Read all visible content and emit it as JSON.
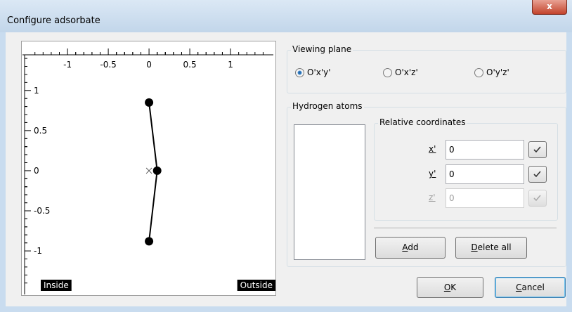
{
  "window": {
    "title": "Configure adsorbate"
  },
  "plot": {
    "xlim": [
      -1.57,
      1.56
    ],
    "ylim": [
      -1.56,
      1.62
    ],
    "xticks": [
      -1,
      -0.5,
      0,
      0.5,
      1
    ],
    "yticks": [
      1,
      0.5,
      0,
      -0.5,
      -1
    ],
    "atoms": {
      "x": [
        0,
        0.1,
        0
      ],
      "y": [
        0.85,
        0,
        -0.88
      ]
    },
    "inside_label": "Inside",
    "outside_label": "Outside"
  },
  "viewing_plane": {
    "title": "Viewing plane",
    "options": [
      "O'x'y'",
      "O'x'z'",
      "O'y'z'"
    ],
    "selected": 0
  },
  "hydrogen_atoms": {
    "title": "Hydrogen atoms",
    "relative_coordinates": {
      "title": "Relative coordinates",
      "rows": [
        {
          "label": "x'",
          "value": "0",
          "enabled": true
        },
        {
          "label": "y'",
          "value": "0",
          "enabled": true
        },
        {
          "label": "z'",
          "value": "0",
          "enabled": false
        }
      ]
    },
    "add": "Add",
    "delete_all": "Delete all"
  },
  "buttons": {
    "ok": "OK",
    "cancel": "Cancel"
  }
}
